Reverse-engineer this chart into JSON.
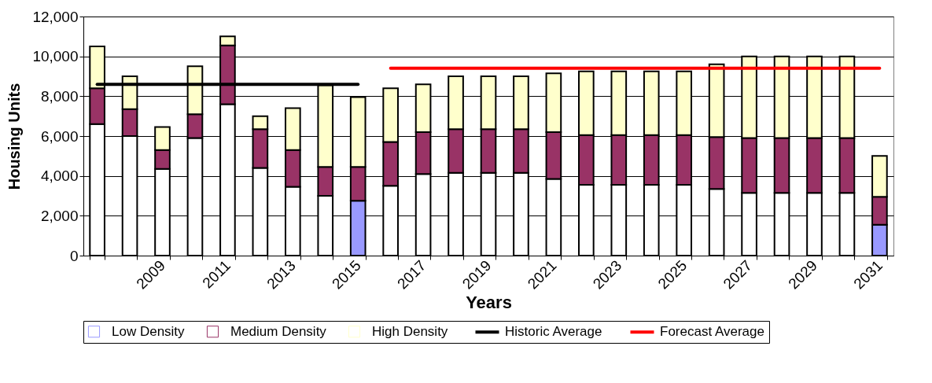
{
  "chart_data": {
    "type": "bar",
    "stacked": true,
    "xlabel": "Years",
    "ylabel": "Housing Units",
    "categories": [
      null,
      null,
      "2009",
      null,
      "2011",
      null,
      "2013",
      null,
      "2015",
      null,
      "2017",
      null,
      "2019",
      null,
      "2021",
      null,
      "2023",
      null,
      "2025",
      null,
      "2027",
      null,
      "2029",
      null,
      "2031"
    ],
    "ylim": [
      0,
      12000
    ],
    "yticks": [
      0,
      {
        "value": 2000,
        "label": "2,000"
      },
      {
        "value": 4000,
        "label": "4,000"
      },
      {
        "value": 6000,
        "label": "6,000"
      },
      {
        "value": 8000,
        "label": "8,000"
      },
      {
        "value": 10000,
        "label": "10,000"
      },
      {
        "value": 12000,
        "label": "12,000"
      }
    ],
    "grid": "y",
    "legend": "bottom",
    "series": [
      {
        "name": "Low Density",
        "color": "#9999ff",
        "colors": [
          "#ffffff",
          "#ffffff",
          "#ffffff",
          "#ffffff",
          "#ffffff",
          "#ffffff",
          "#ffffff",
          "#ffffff",
          "#9999ff",
          "#ffffff",
          "#ffffff",
          "#ffffff",
          "#ffffff",
          "#ffffff",
          "#ffffff",
          "#ffffff",
          "#ffffff",
          "#ffffff",
          "#ffffff",
          "#ffffff",
          "#ffffff",
          "#ffffff",
          "#ffffff",
          "#ffffff",
          "#9999ff"
        ],
        "values": [
          6600,
          6000,
          4350,
          5900,
          7600,
          4400,
          3450,
          3000,
          2750,
          3500,
          4100,
          4150,
          4150,
          4150,
          3850,
          3550,
          3550,
          3550,
          3550,
          3350,
          3150,
          3150,
          3150,
          3150,
          1550
        ]
      },
      {
        "name": "Medium Density",
        "color": "#993366",
        "values": [
          1800,
          1350,
          950,
          1200,
          2950,
          1950,
          1850,
          1450,
          1700,
          2200,
          2100,
          2200,
          2200,
          2200,
          2350,
          2500,
          2500,
          2500,
          2500,
          2600,
          2750,
          2750,
          2750,
          2750,
          1400
        ]
      },
      {
        "name": "High Density",
        "color": "#ffffcc",
        "values": [
          2100,
          1650,
          1150,
          2400,
          450,
          650,
          2100,
          4100,
          3500,
          2700,
          2400,
          2650,
          2650,
          2650,
          2950,
          3200,
          3200,
          3200,
          3200,
          3650,
          4100,
          4100,
          4100,
          4100,
          2050
        ]
      },
      {
        "name": "Historic Average",
        "type": "line",
        "color": "#000000",
        "values": [
          8600,
          8600,
          8600,
          8600,
          8600,
          8600,
          8600,
          8600,
          8600,
          null,
          null,
          null,
          null,
          null,
          null,
          null,
          null,
          null,
          null,
          null,
          null,
          null,
          null,
          null,
          null
        ]
      },
      {
        "name": "Forecast Average",
        "type": "line",
        "color": "#ff0000",
        "values": [
          null,
          null,
          null,
          null,
          null,
          null,
          null,
          null,
          null,
          9400,
          9400,
          9400,
          9400,
          9400,
          9400,
          9400,
          9400,
          9400,
          9400,
          9400,
          9400,
          9400,
          9400,
          9400,
          9400
        ]
      }
    ]
  }
}
